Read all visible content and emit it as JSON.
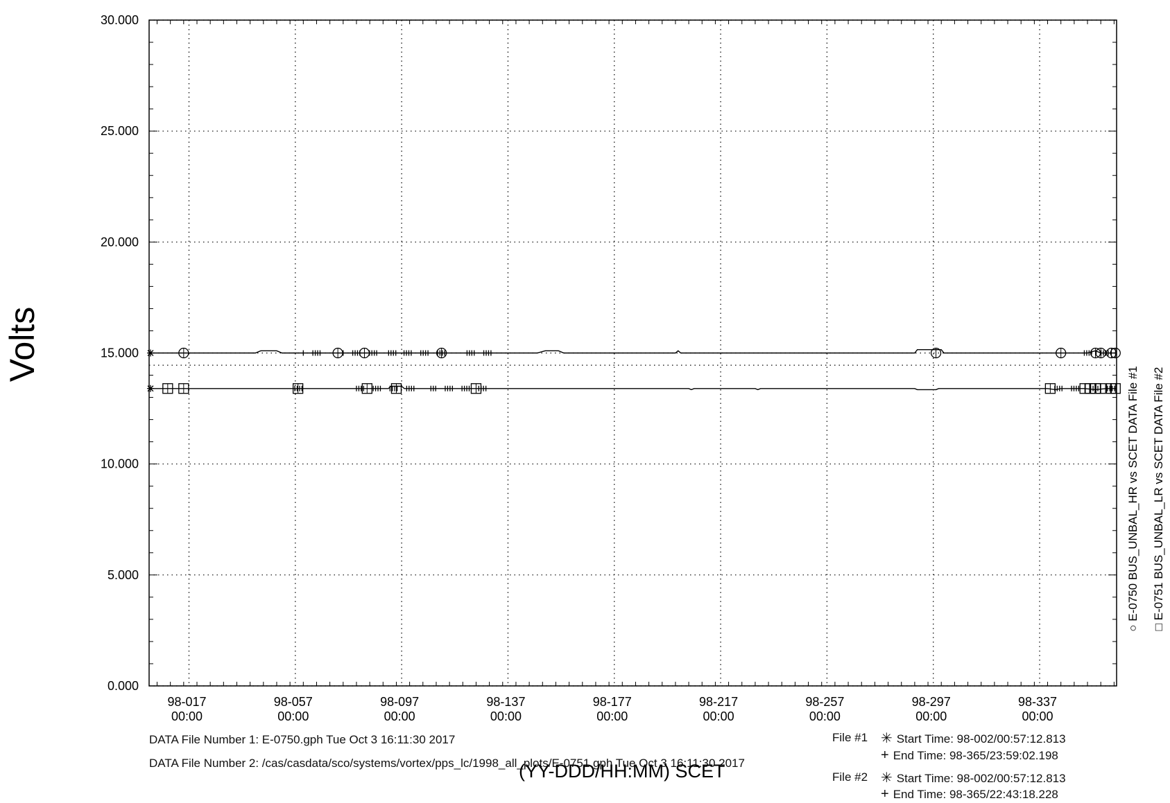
{
  "chart_data": {
    "type": "line",
    "ylabel": "Volts",
    "xlabel": "(YY-DDD/HH:MM) SCET",
    "xlim": [
      2,
      365.95
    ],
    "ylim": [
      0,
      30
    ],
    "grid": true,
    "yticks": [
      {
        "value": 0,
        "label": "0.000"
      },
      {
        "value": 5,
        "label": "5.000"
      },
      {
        "value": 10,
        "label": "10.000"
      },
      {
        "value": 15,
        "label": "15.000"
      },
      {
        "value": 20,
        "label": "20.000"
      },
      {
        "value": 25,
        "label": "25.000"
      },
      {
        "value": 30,
        "label": "30.000"
      }
    ],
    "xticks": [
      {
        "value": 17,
        "label1": "98-017",
        "label2": "00:00"
      },
      {
        "value": 57,
        "label1": "98-057",
        "label2": "00:00"
      },
      {
        "value": 97,
        "label1": "98-097",
        "label2": "00:00"
      },
      {
        "value": 137,
        "label1": "98-137",
        "label2": "00:00"
      },
      {
        "value": 177,
        "label1": "98-177",
        "label2": "00:00"
      },
      {
        "value": 217,
        "label1": "98-217",
        "label2": "00:00"
      },
      {
        "value": 257,
        "label1": "98-257",
        "label2": "00:00"
      },
      {
        "value": 297,
        "label1": "98-297",
        "label2": "00:00"
      },
      {
        "value": 337,
        "label1": "98-337",
        "label2": "00:00"
      }
    ],
    "series": [
      {
        "name": "E-0750 BUS_UNBAL_HR vs SCET DATA File #1",
        "marker": "circle",
        "points": [
          [
            2,
            15.0
          ],
          [
            12,
            15.0
          ],
          [
            15,
            15.0
          ],
          [
            18,
            15.0
          ],
          [
            42,
            15.0
          ],
          [
            44,
            15.1
          ],
          [
            50,
            15.1
          ],
          [
            52,
            15.0
          ],
          [
            76,
            15.0
          ],
          [
            83,
            15.0
          ],
          [
            86,
            15.0
          ],
          [
            89,
            15.0
          ],
          [
            96,
            15.0
          ],
          [
            104,
            15.0
          ],
          [
            109,
            15.0
          ],
          [
            111,
            15.0
          ],
          [
            112,
            15.0
          ],
          [
            126,
            15.0
          ],
          [
            148,
            15.0
          ],
          [
            151,
            15.1
          ],
          [
            156,
            15.1
          ],
          [
            158,
            15.0
          ],
          [
            200,
            15.0
          ],
          [
            201,
            15.1
          ],
          [
            202,
            15.0
          ],
          [
            290,
            15.0
          ],
          [
            291,
            15.15
          ],
          [
            300,
            15.15
          ],
          [
            301,
            15.0
          ],
          [
            335,
            15.0
          ],
          [
            340,
            15.0
          ],
          [
            345,
            15.0
          ],
          [
            355,
            15.0
          ],
          [
            358,
            15.1
          ],
          [
            360,
            15.0
          ],
          [
            364,
            15.0
          ],
          [
            365.9,
            15.0
          ]
        ],
        "marker_x": [
          15,
          73,
          83,
          112,
          298,
          345,
          358,
          360,
          364,
          365.5
        ]
      },
      {
        "name": "E-0751 BUS_UNBAL_LR vs SCET DATA File #2",
        "marker": "square",
        "points": [
          [
            2,
            13.4
          ],
          [
            8,
            13.4
          ],
          [
            10,
            13.4
          ],
          [
            15,
            13.4
          ],
          [
            57,
            13.4
          ],
          [
            62,
            13.4
          ],
          [
            83,
            13.4
          ],
          [
            92,
            13.4
          ],
          [
            93,
            13.5
          ],
          [
            97,
            13.5
          ],
          [
            98,
            13.4
          ],
          [
            116,
            13.4
          ],
          [
            121,
            13.4
          ],
          [
            205,
            13.4
          ],
          [
            206,
            13.35
          ],
          [
            207,
            13.4
          ],
          [
            230,
            13.4
          ],
          [
            231,
            13.35
          ],
          [
            232,
            13.4
          ],
          [
            290,
            13.4
          ],
          [
            291,
            13.35
          ],
          [
            298,
            13.35
          ],
          [
            299,
            13.4
          ],
          [
            340,
            13.4
          ],
          [
            343,
            13.35
          ],
          [
            345,
            13.4
          ],
          [
            354,
            13.4
          ],
          [
            358,
            13.35
          ],
          [
            362,
            13.4
          ],
          [
            365.9,
            13.4
          ]
        ],
        "marker_x": [
          9,
          15,
          58,
          84,
          95,
          125,
          341,
          354,
          356,
          358,
          360,
          364,
          365.5
        ]
      }
    ]
  },
  "footer": {
    "file1_line": "DATA File Number 1: E-0750.gph  Tue Oct  3 16:11:30 2017",
    "file2_line": "DATA File Number 2: /cas/casdata/sco/systems/vortex/pps_lc/1998_all_plots/E-0751.gph  Tue Oct  3 16:11:30 2017"
  },
  "time_info": {
    "file1_label": "File #1",
    "file1_start": "Start Time: 98-002/00:57:12.813",
    "file1_end": "End Time: 98-365/23:59:02.198",
    "file2_label": "File #2",
    "file2_start": "Start Time: 98-002/00:57:12.813",
    "file2_end": "End Time: 98-365/22:43:18.228"
  },
  "legend": {
    "item1": "E-0750  BUS_UNBAL_HR  vs  SCET  DATA File #1",
    "item2": "E-0751  BUS_UNBAL_LR  vs  SCET  DATA File #2",
    "marker1": "○",
    "marker2": "□"
  },
  "markers": {
    "start": "✳",
    "end": "+"
  }
}
